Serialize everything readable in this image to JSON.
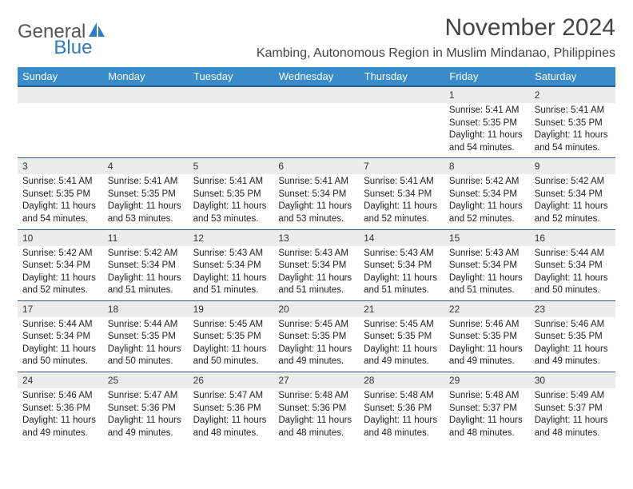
{
  "brand": {
    "word1": "General",
    "word2": "Blue"
  },
  "title": "November 2024",
  "location": "Kambing, Autonomous Region in Muslim Mindanao, Philippines",
  "colors": {
    "header_bg": "#3a8bc9",
    "header_text": "#ffffff",
    "row_border": "#2d5a88",
    "daynum_bg": "#ececec",
    "brand_blue": "#2d7cc1",
    "brand_gray": "#555555",
    "text": "#333333",
    "background": "#ffffff"
  },
  "typography": {
    "month_title_fontsize": 30,
    "location_fontsize": 16,
    "header_fontsize": 13,
    "cell_fontsize": 11.5,
    "daynum_fontsize": 12
  },
  "day_headers": [
    "Sunday",
    "Monday",
    "Tuesday",
    "Wednesday",
    "Thursday",
    "Friday",
    "Saturday"
  ],
  "weeks": [
    [
      {
        "blank": true
      },
      {
        "blank": true
      },
      {
        "blank": true
      },
      {
        "blank": true
      },
      {
        "blank": true
      },
      {
        "num": "1",
        "sunrise": "Sunrise: 5:41 AM",
        "sunset": "Sunset: 5:35 PM",
        "daylight": "Daylight: 11 hours and 54 minutes."
      },
      {
        "num": "2",
        "sunrise": "Sunrise: 5:41 AM",
        "sunset": "Sunset: 5:35 PM",
        "daylight": "Daylight: 11 hours and 54 minutes."
      }
    ],
    [
      {
        "num": "3",
        "sunrise": "Sunrise: 5:41 AM",
        "sunset": "Sunset: 5:35 PM",
        "daylight": "Daylight: 11 hours and 54 minutes."
      },
      {
        "num": "4",
        "sunrise": "Sunrise: 5:41 AM",
        "sunset": "Sunset: 5:35 PM",
        "daylight": "Daylight: 11 hours and 53 minutes."
      },
      {
        "num": "5",
        "sunrise": "Sunrise: 5:41 AM",
        "sunset": "Sunset: 5:35 PM",
        "daylight": "Daylight: 11 hours and 53 minutes."
      },
      {
        "num": "6",
        "sunrise": "Sunrise: 5:41 AM",
        "sunset": "Sunset: 5:34 PM",
        "daylight": "Daylight: 11 hours and 53 minutes."
      },
      {
        "num": "7",
        "sunrise": "Sunrise: 5:41 AM",
        "sunset": "Sunset: 5:34 PM",
        "daylight": "Daylight: 11 hours and 52 minutes."
      },
      {
        "num": "8",
        "sunrise": "Sunrise: 5:42 AM",
        "sunset": "Sunset: 5:34 PM",
        "daylight": "Daylight: 11 hours and 52 minutes."
      },
      {
        "num": "9",
        "sunrise": "Sunrise: 5:42 AM",
        "sunset": "Sunset: 5:34 PM",
        "daylight": "Daylight: 11 hours and 52 minutes."
      }
    ],
    [
      {
        "num": "10",
        "sunrise": "Sunrise: 5:42 AM",
        "sunset": "Sunset: 5:34 PM",
        "daylight": "Daylight: 11 hours and 52 minutes."
      },
      {
        "num": "11",
        "sunrise": "Sunrise: 5:42 AM",
        "sunset": "Sunset: 5:34 PM",
        "daylight": "Daylight: 11 hours and 51 minutes."
      },
      {
        "num": "12",
        "sunrise": "Sunrise: 5:43 AM",
        "sunset": "Sunset: 5:34 PM",
        "daylight": "Daylight: 11 hours and 51 minutes."
      },
      {
        "num": "13",
        "sunrise": "Sunrise: 5:43 AM",
        "sunset": "Sunset: 5:34 PM",
        "daylight": "Daylight: 11 hours and 51 minutes."
      },
      {
        "num": "14",
        "sunrise": "Sunrise: 5:43 AM",
        "sunset": "Sunset: 5:34 PM",
        "daylight": "Daylight: 11 hours and 51 minutes."
      },
      {
        "num": "15",
        "sunrise": "Sunrise: 5:43 AM",
        "sunset": "Sunset: 5:34 PM",
        "daylight": "Daylight: 11 hours and 51 minutes."
      },
      {
        "num": "16",
        "sunrise": "Sunrise: 5:44 AM",
        "sunset": "Sunset: 5:34 PM",
        "daylight": "Daylight: 11 hours and 50 minutes."
      }
    ],
    [
      {
        "num": "17",
        "sunrise": "Sunrise: 5:44 AM",
        "sunset": "Sunset: 5:34 PM",
        "daylight": "Daylight: 11 hours and 50 minutes."
      },
      {
        "num": "18",
        "sunrise": "Sunrise: 5:44 AM",
        "sunset": "Sunset: 5:35 PM",
        "daylight": "Daylight: 11 hours and 50 minutes."
      },
      {
        "num": "19",
        "sunrise": "Sunrise: 5:45 AM",
        "sunset": "Sunset: 5:35 PM",
        "daylight": "Daylight: 11 hours and 50 minutes."
      },
      {
        "num": "20",
        "sunrise": "Sunrise: 5:45 AM",
        "sunset": "Sunset: 5:35 PM",
        "daylight": "Daylight: 11 hours and 49 minutes."
      },
      {
        "num": "21",
        "sunrise": "Sunrise: 5:45 AM",
        "sunset": "Sunset: 5:35 PM",
        "daylight": "Daylight: 11 hours and 49 minutes."
      },
      {
        "num": "22",
        "sunrise": "Sunrise: 5:46 AM",
        "sunset": "Sunset: 5:35 PM",
        "daylight": "Daylight: 11 hours and 49 minutes."
      },
      {
        "num": "23",
        "sunrise": "Sunrise: 5:46 AM",
        "sunset": "Sunset: 5:35 PM",
        "daylight": "Daylight: 11 hours and 49 minutes."
      }
    ],
    [
      {
        "num": "24",
        "sunrise": "Sunrise: 5:46 AM",
        "sunset": "Sunset: 5:36 PM",
        "daylight": "Daylight: 11 hours and 49 minutes."
      },
      {
        "num": "25",
        "sunrise": "Sunrise: 5:47 AM",
        "sunset": "Sunset: 5:36 PM",
        "daylight": "Daylight: 11 hours and 49 minutes."
      },
      {
        "num": "26",
        "sunrise": "Sunrise: 5:47 AM",
        "sunset": "Sunset: 5:36 PM",
        "daylight": "Daylight: 11 hours and 48 minutes."
      },
      {
        "num": "27",
        "sunrise": "Sunrise: 5:48 AM",
        "sunset": "Sunset: 5:36 PM",
        "daylight": "Daylight: 11 hours and 48 minutes."
      },
      {
        "num": "28",
        "sunrise": "Sunrise: 5:48 AM",
        "sunset": "Sunset: 5:36 PM",
        "daylight": "Daylight: 11 hours and 48 minutes."
      },
      {
        "num": "29",
        "sunrise": "Sunrise: 5:48 AM",
        "sunset": "Sunset: 5:37 PM",
        "daylight": "Daylight: 11 hours and 48 minutes."
      },
      {
        "num": "30",
        "sunrise": "Sunrise: 5:49 AM",
        "sunset": "Sunset: 5:37 PM",
        "daylight": "Daylight: 11 hours and 48 minutes."
      }
    ]
  ]
}
